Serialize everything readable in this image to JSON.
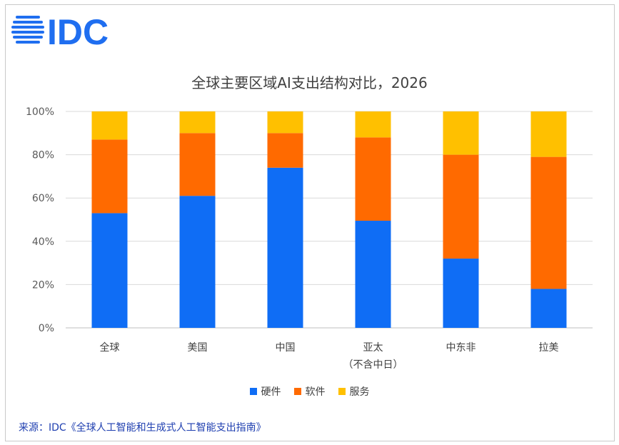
{
  "logo": {
    "text": "IDC",
    "color": "#1f6ef0"
  },
  "chart_data": {
    "type": "bar",
    "stacked": true,
    "title": "全球主要区域AI支出结构对比，2026",
    "xlabel": "",
    "ylabel": "",
    "ylim": [
      0,
      100
    ],
    "yticks": [
      "0%",
      "20%",
      "40%",
      "60%",
      "80%",
      "100%"
    ],
    "grid": true,
    "legend_position": "bottom",
    "categories": [
      {
        "name": "全球",
        "sub": ""
      },
      {
        "name": "美国",
        "sub": ""
      },
      {
        "name": "中国",
        "sub": ""
      },
      {
        "name": "亚太",
        "sub": "（不含中日）"
      },
      {
        "name": "中东非",
        "sub": ""
      },
      {
        "name": "拉美",
        "sub": ""
      }
    ],
    "series": [
      {
        "name": "硬件",
        "color": "#0f6df5",
        "values": [
          53,
          61,
          74,
          49.5,
          32,
          18
        ]
      },
      {
        "name": "软件",
        "color": "#ff6a00",
        "values": [
          34,
          29,
          16,
          38.5,
          48,
          61
        ]
      },
      {
        "name": "服务",
        "color": "#ffc000",
        "values": [
          13,
          10,
          10,
          12,
          20,
          21
        ]
      }
    ]
  },
  "source": "来源：IDC《全球人工智能和生成式人工智能支出指南》"
}
